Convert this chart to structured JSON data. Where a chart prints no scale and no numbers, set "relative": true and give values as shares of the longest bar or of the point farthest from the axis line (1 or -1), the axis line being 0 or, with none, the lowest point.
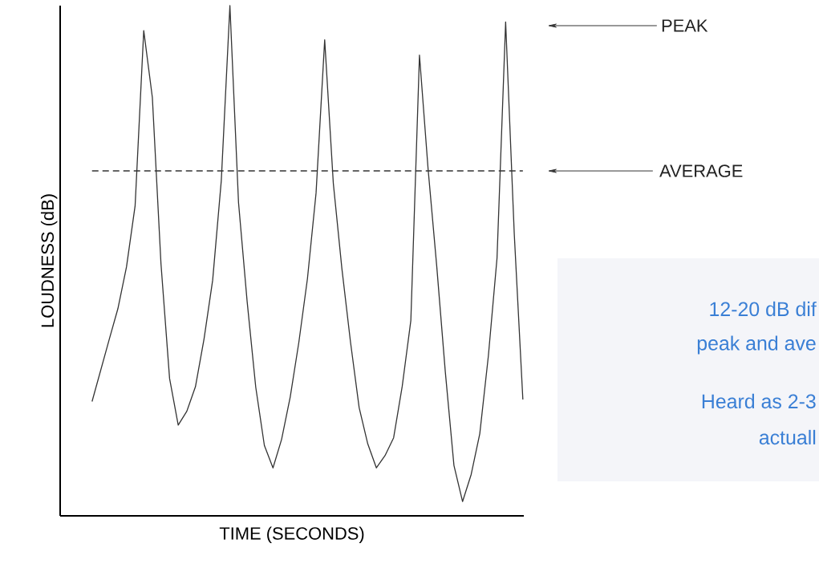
{
  "chart_data": {
    "type": "line",
    "relative": true,
    "xlabel": "TIME (SECONDS)",
    "ylabel": "LOUDNESS (dB)",
    "tick_labels": false,
    "marker": "none",
    "line_style": "solid",
    "categories": [
      null,
      null,
      null,
      null,
      null,
      null,
      null,
      null,
      null,
      null,
      null,
      null,
      null,
      null,
      null,
      null,
      null,
      null,
      null,
      null,
      null,
      null,
      null,
      null,
      null,
      null,
      null,
      null,
      null,
      null,
      null,
      null,
      null,
      null,
      null,
      null,
      null,
      null,
      null,
      null,
      null,
      null,
      null,
      null,
      null,
      null,
      null,
      null,
      null,
      null,
      null
    ],
    "series": [
      {
        "color": "#333333",
        "values": [
          0.224,
          0.285,
          0.346,
          0.406,
          0.488,
          0.608,
          0.951,
          0.82,
          0.494,
          0.269,
          0.178,
          0.205,
          0.253,
          0.347,
          0.462,
          0.657,
          1.0,
          0.614,
          0.42,
          0.252,
          0.138,
          0.094,
          0.15,
          0.233,
          0.34,
          0.465,
          0.633,
          0.933,
          0.652,
          0.484,
          0.34,
          0.212,
          0.141,
          0.094,
          0.118,
          0.153,
          0.254,
          0.383,
          0.903,
          0.68,
          0.49,
          0.282,
          0.099,
          0.028,
          0.081,
          0.161,
          0.314,
          0.505,
          0.968,
          0.553,
          0.228
        ]
      }
    ],
    "ref_lines": [
      {
        "axis": "y",
        "value": 0.676,
        "label": "AVERAGE",
        "line_style": "dashed",
        "color": "#333333"
      }
    ],
    "annotations": [
      "PEAK",
      "12-20 dB dif",
      "peak and ave",
      "Heard as 2-3",
      "actuall"
    ]
  }
}
